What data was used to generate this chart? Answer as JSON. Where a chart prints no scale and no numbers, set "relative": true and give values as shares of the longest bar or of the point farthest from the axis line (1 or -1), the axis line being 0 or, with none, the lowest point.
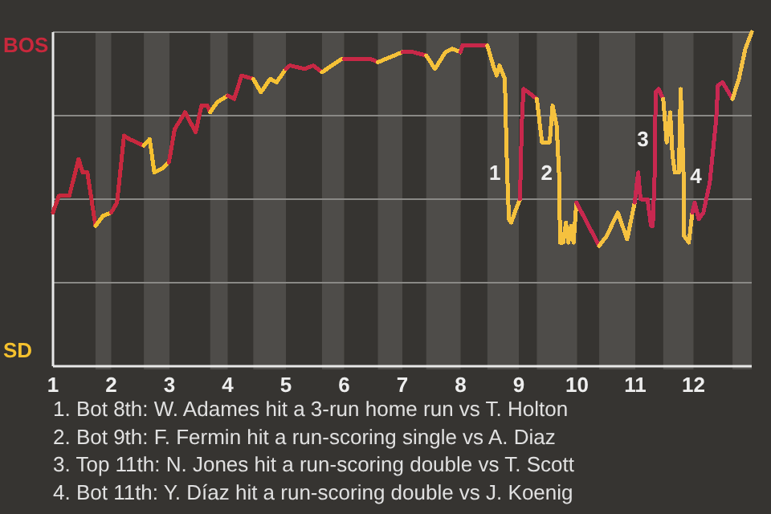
{
  "chart_data": {
    "type": "line",
    "relative": true,
    "xlim": [
      1,
      13
    ],
    "xticks": [
      1,
      2,
      3,
      4,
      5,
      6,
      7,
      8,
      9,
      10,
      11,
      12
    ],
    "grid": "y",
    "series": [
      {
        "name": "BOS",
        "color": "#c8283c",
        "x": [
          1,
          1.1,
          1.28,
          1.44,
          1.51,
          1.59,
          1.73
        ],
        "values": [
          0.46,
          0.51,
          0.51,
          0.62,
          0.58,
          0.58,
          0.42
        ]
      },
      {
        "name": "SD",
        "color": "#f5c12e",
        "x": [
          1.73,
          1.86,
          2
        ],
        "values": [
          0.42,
          0.45,
          0.46
        ]
      },
      {
        "color": "#c8283e",
        "x": [
          2,
          2.1,
          2.22,
          2.31,
          2.56
        ],
        "values": [
          0.46,
          0.49,
          0.69,
          0.68,
          0.66
        ]
      },
      {
        "color": "#f5c130",
        "x": [
          2.56,
          2.66,
          2.74,
          2.86,
          2.99
        ],
        "values": [
          0.66,
          0.68,
          0.58,
          0.59,
          0.61
        ]
      },
      {
        "color": "#c82840",
        "x": [
          2.99,
          3.09,
          3.27,
          3.45,
          3.55,
          3.65,
          3.7
        ],
        "values": [
          0.61,
          0.71,
          0.76,
          0.7,
          0.78,
          0.78,
          0.76
        ]
      },
      {
        "color": "#f5c132",
        "x": [
          3.7,
          3.82,
          4
        ],
        "values": [
          0.76,
          0.79,
          0.81
        ]
      },
      {
        "color": "#c82842",
        "x": [
          4,
          4.11,
          4.24,
          4.44
        ],
        "values": [
          0.81,
          0.8,
          0.87,
          0.86
        ]
      },
      {
        "color": "#f5c134",
        "x": [
          4.44,
          4.57,
          4.73,
          4.84,
          5
        ],
        "values": [
          0.86,
          0.82,
          0.86,
          0.85,
          0.89
        ]
      },
      {
        "color": "#c82844",
        "x": [
          5,
          5.07,
          5.32,
          5.47,
          5.62
        ],
        "values": [
          0.89,
          0.9,
          0.89,
          0.9,
          0.88
        ]
      },
      {
        "color": "#f5c136",
        "x": [
          5.62,
          5.96,
          6
        ],
        "values": [
          0.88,
          0.92,
          0.92
        ]
      },
      {
        "color": "#c82846",
        "x": [
          6,
          6.24,
          6.45,
          6.58
        ],
        "values": [
          0.92,
          0.92,
          0.92,
          0.91
        ]
      },
      {
        "color": "#f5c138",
        "x": [
          6.58,
          7
        ],
        "values": [
          0.91,
          0.94
        ]
      },
      {
        "color": "#c82848",
        "x": [
          7,
          7.19,
          7.41
        ],
        "values": [
          0.94,
          0.94,
          0.93
        ]
      },
      {
        "color": "#f5c13a",
        "x": [
          7.41,
          7.56,
          7.74,
          7.86,
          8
        ],
        "values": [
          0.93,
          0.89,
          0.94,
          0.95,
          0.94
        ]
      },
      {
        "color": "#c8284a",
        "x": [
          8,
          8.03,
          8.46
        ],
        "values": [
          0.94,
          0.96,
          0.96
        ]
      },
      {
        "color": "#f5c13c",
        "x": [
          8.46,
          8.56,
          8.62,
          8.67,
          8.76,
          8.78,
          8.8,
          8.83,
          8.87,
          8.93,
          9.02
        ],
        "values": [
          0.96,
          0.9,
          0.87,
          0.9,
          0.86,
          0.71,
          0.58,
          0.44,
          0.43,
          0.46,
          0.5
        ]
      },
      {
        "color": "#c8284c",
        "x": [
          9.02,
          9.05,
          9.08,
          9.16,
          9.31
        ],
        "values": [
          0.5,
          0.72,
          0.83,
          0.82,
          0.8
        ]
      },
      {
        "color": "#f5c13e",
        "x": [
          9.31,
          9.37,
          9.4,
          9.53,
          9.58,
          9.65,
          9.69,
          9.71,
          9.76,
          9.81,
          9.85,
          9.9,
          9.94,
          9.99
        ],
        "values": [
          0.8,
          0.71,
          0.67,
          0.67,
          0.78,
          0.72,
          0.58,
          0.37,
          0.37,
          0.43,
          0.37,
          0.42,
          0.37,
          0.49
        ]
      },
      {
        "color": "#c8284e",
        "x": [
          9.99,
          10.38
        ],
        "values": [
          0.49,
          0.36
        ]
      },
      {
        "color": "#f5c140",
        "x": [
          10.38,
          10.51,
          10.7,
          10.86,
          10.99
        ],
        "values": [
          0.36,
          0.39,
          0.46,
          0.38,
          0.49
        ]
      },
      {
        "color": "#c82850",
        "x": [
          10.99,
          11.05,
          11.09,
          11.21,
          11.27,
          11.3,
          11.33,
          11.35,
          11.4,
          11.48
        ],
        "values": [
          0.49,
          0.58,
          0.5,
          0.5,
          0.42,
          0.42,
          0.55,
          0.82,
          0.83,
          0.8
        ]
      },
      {
        "color": "#f5c142",
        "x": [
          11.48,
          11.54,
          11.6,
          11.64,
          11.68,
          11.75,
          11.78,
          11.83,
          11.84,
          11.92,
          11.98
        ],
        "values": [
          0.8,
          0.67,
          0.76,
          0.63,
          0.58,
          0.58,
          0.83,
          0.57,
          0.39,
          0.37,
          0.46
        ]
      },
      {
        "color": "#c82852",
        "x": [
          11.98,
          12.02,
          12.09,
          12.17,
          12.28,
          12.39,
          12.42,
          12.5,
          12.67
        ],
        "values": [
          0.46,
          0.49,
          0.44,
          0.46,
          0.55,
          0.74,
          0.84,
          0.85,
          0.8
        ]
      },
      {
        "color": "#f5c144",
        "x": [
          12.67,
          12.78,
          12.89,
          13
        ],
        "values": [
          0.8,
          0.86,
          0.95,
          1
        ]
      }
    ],
    "bands": [
      {
        "axis": "x",
        "from": 1.73,
        "to": 2,
        "color": "#4e4c49"
      },
      {
        "axis": "x",
        "from": 2.56,
        "to": 3,
        "color": "#4e4c49"
      },
      {
        "axis": "x",
        "from": 3.7,
        "to": 4,
        "color": "#4e4c49"
      },
      {
        "axis": "x",
        "from": 4.44,
        "to": 5,
        "color": "#4e4c49"
      },
      {
        "axis": "x",
        "from": 5.62,
        "to": 6,
        "color": "#4e4c49"
      },
      {
        "axis": "x",
        "from": 6.58,
        "to": 7,
        "color": "#4e4c49"
      },
      {
        "axis": "x",
        "from": 7.41,
        "to": 8,
        "color": "#4e4c49"
      },
      {
        "axis": "x",
        "from": 8.46,
        "to": 9,
        "color": "#4e4c49"
      },
      {
        "axis": "x",
        "from": 9.31,
        "to": 10,
        "color": "#4e4c49"
      },
      {
        "axis": "x",
        "from": 10.38,
        "to": 11,
        "color": "#4e4c49"
      },
      {
        "axis": "x",
        "from": 11.48,
        "to": 12,
        "color": "#4e4c49"
      },
      {
        "axis": "x",
        "from": 12.67,
        "to": 13,
        "color": "#4e4c49"
      }
    ],
    "annotations": [
      {
        "text": "1",
        "x": 8.8,
        "y": 0.58
      },
      {
        "text": "2",
        "x": 9.69,
        "y": 0.58
      },
      {
        "text": "3",
        "x": 11.34,
        "y": 0.68
      },
      {
        "text": "4",
        "x": 11.83,
        "y": 0.57
      },
      "1. Bot 8th: W. Adames hit a 3-run home run vs T. Holton",
      "2. Bot 9th: F. Fermin hit a run-scoring single vs A. Diaz",
      "3. Top 11th: N. Jones hit a run-scoring double vs T. Scott",
      "4. Bot 11th: Y. Díaz hit a run-scoring double vs J. Koenig"
    ]
  }
}
